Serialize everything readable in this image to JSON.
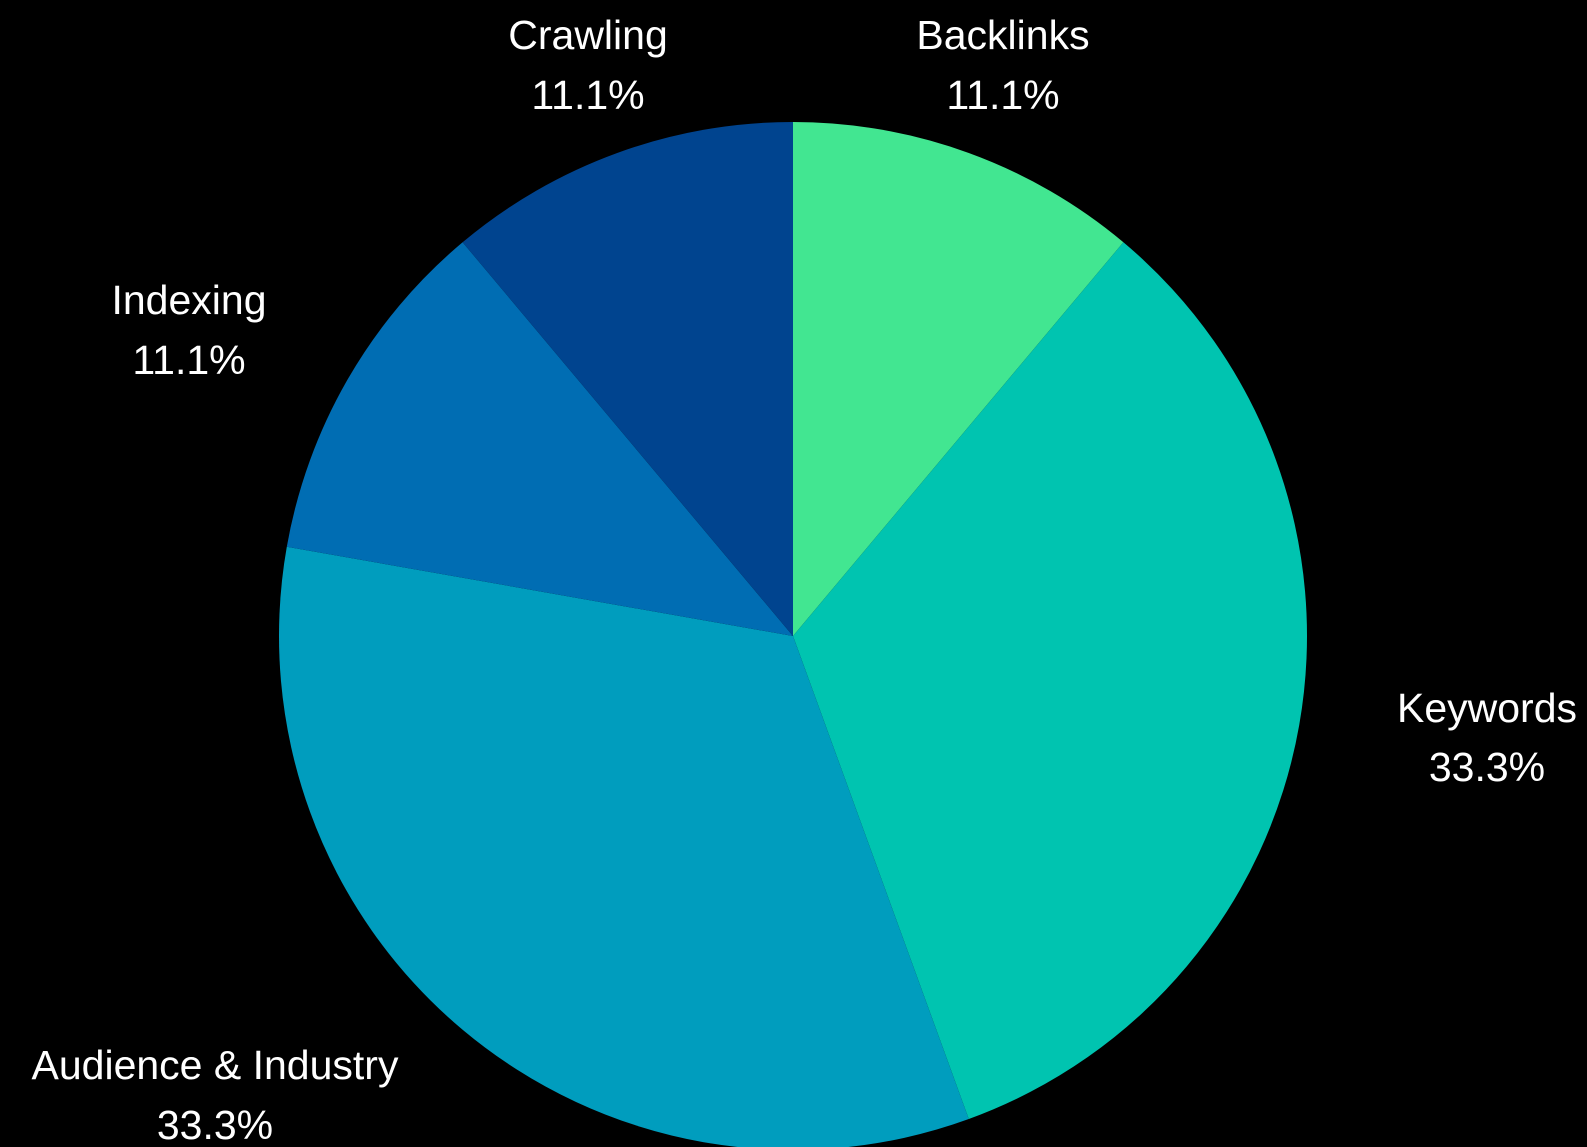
{
  "chart_data": {
    "type": "pie",
    "title": "",
    "start_angle_deg": 0,
    "direction": "clockwise",
    "slices": [
      {
        "label": "Backlinks",
        "value": 11.1,
        "value_label": "11.1%",
        "color": "#42e691"
      },
      {
        "label": "Keywords",
        "value": 33.3,
        "value_label": "33.3%",
        "color": "#00c4b0"
      },
      {
        "label": "Audience & Industry",
        "value": 33.3,
        "value_label": "33.3%",
        "color": "#009dbe"
      },
      {
        "label": "Indexing",
        "value": 11.1,
        "value_label": "11.1%",
        "color": "#006db3"
      },
      {
        "label": "Crawling",
        "value": 11.1,
        "value_label": "11.1%",
        "color": "#00448f"
      }
    ],
    "background": "#000000",
    "label_color": "#ffffff"
  }
}
